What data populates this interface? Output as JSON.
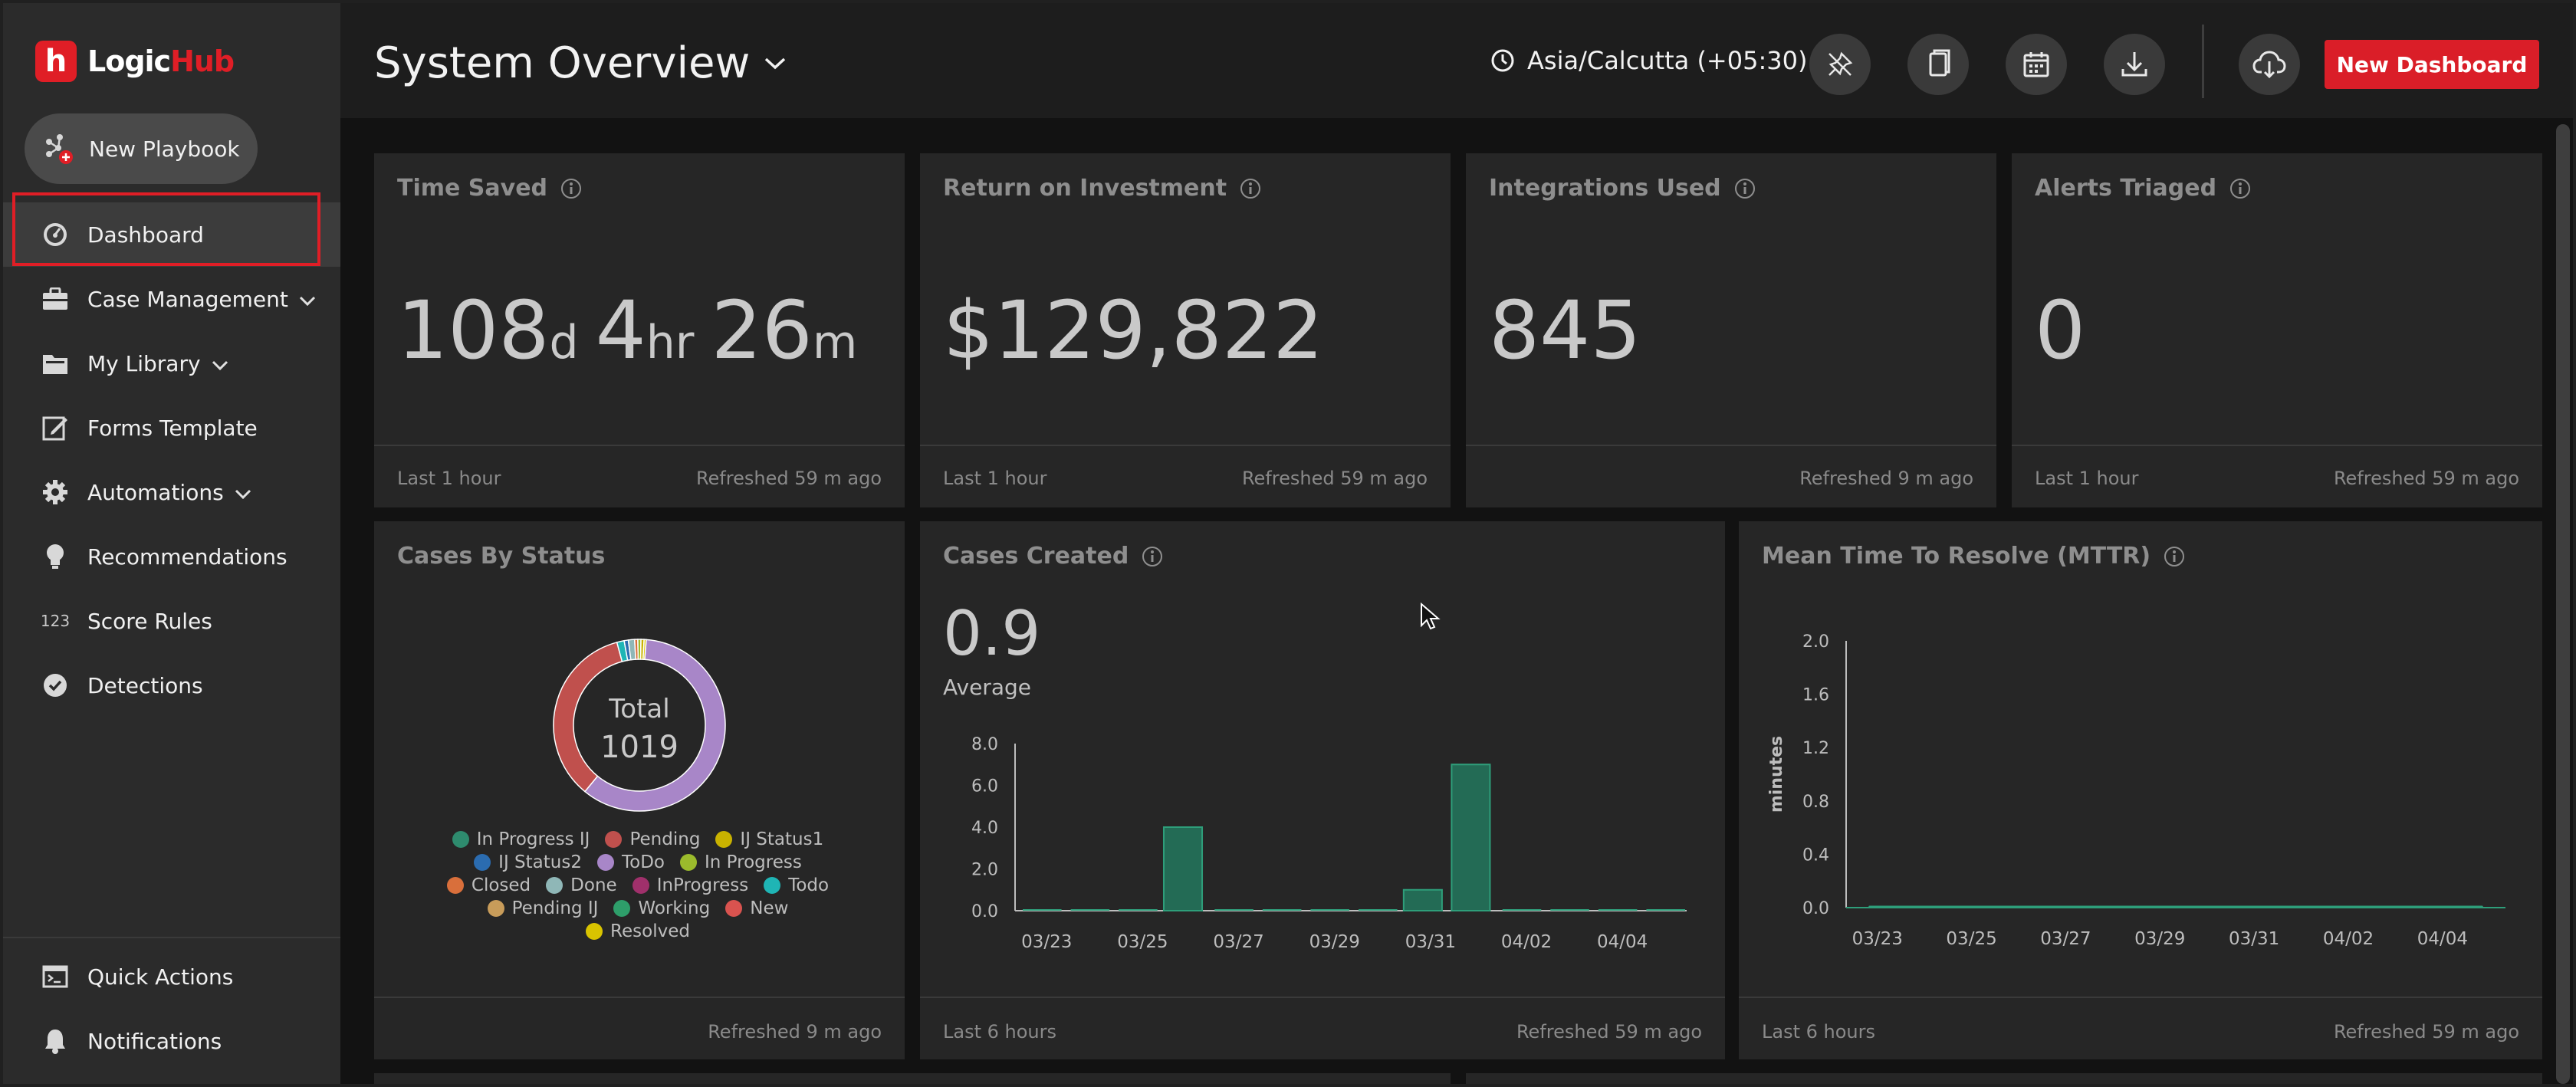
{
  "brand": {
    "logo_letter": "h",
    "name_part1": "Logic",
    "name_part2": "Hub",
    "accent": "#e01e26"
  },
  "sidebar": {
    "new_playbook": "New Playbook",
    "items": [
      {
        "label": "Dashboard",
        "icon": "dashboard-gauge-icon",
        "active": true
      },
      {
        "label": "Case Management",
        "icon": "briefcase-icon",
        "chevron": true
      },
      {
        "label": "My Library",
        "icon": "folder-icon",
        "chevron": true
      },
      {
        "label": "Forms Template",
        "icon": "edit-form-icon"
      },
      {
        "label": "Automations",
        "icon": "gear-icon",
        "chevron": true
      },
      {
        "label": "Recommendations",
        "icon": "lightbulb-icon"
      },
      {
        "label": "Score Rules",
        "icon": "123-icon",
        "icon_text": "123"
      },
      {
        "label": "Detections",
        "icon": "badge-check-icon"
      }
    ],
    "bottom_items": [
      {
        "label": "Quick Actions",
        "icon": "terminal-icon"
      },
      {
        "label": "Notifications",
        "icon": "bell-icon"
      }
    ]
  },
  "header": {
    "title": "System Overview",
    "timezone": "Asia/Calcutta (+05:30)",
    "icon_buttons": [
      "pin-off-icon",
      "copy-icon",
      "calendar-icon",
      "download-icon",
      "cloud-download-icon"
    ],
    "new_dashboard": "New Dashboard"
  },
  "kpis": [
    {
      "title": "Time Saved",
      "parts": [
        {
          "n": "108",
          "u": "d"
        },
        {
          "n": "4",
          "u": "hr"
        },
        {
          "n": "26",
          "u": "m"
        }
      ],
      "left": "Last 1 hour",
      "right": "Refreshed 59 m ago"
    },
    {
      "title": "Return on Investment",
      "value": "$129,822",
      "left": "Last 1 hour",
      "right": "Refreshed 59 m ago"
    },
    {
      "title": "Integrations Used",
      "value": "845",
      "left": "",
      "right": "Refreshed 9 m ago"
    },
    {
      "title": "Alerts Triaged",
      "value": "0",
      "left": "Last 1 hour",
      "right": "Refreshed 59 m ago"
    }
  ],
  "cases_by_status": {
    "title": "Cases By Status",
    "total_label": "Total",
    "total_value": "1019",
    "footer_right": "Refreshed 9 m ago",
    "legend_rows": [
      [
        {
          "label": "In Progress IJ",
          "color": "#2e8b6e"
        },
        {
          "label": "Pending",
          "color": "#c0504d"
        },
        {
          "label": "IJ Status1",
          "color": "#c9b200"
        }
      ],
      [
        {
          "label": "IJ Status2",
          "color": "#2b6cb0"
        },
        {
          "label": "ToDo",
          "color": "#a886c8"
        },
        {
          "label": "In Progress",
          "color": "#9bbb2c"
        }
      ],
      [
        {
          "label": "Closed",
          "color": "#d96f3b"
        },
        {
          "label": "Done",
          "color": "#8fb7b7"
        },
        {
          "label": "InProgress",
          "color": "#a0306b"
        },
        {
          "label": "Todo",
          "color": "#1fb5b5"
        }
      ],
      [
        {
          "label": "Pending IJ",
          "color": "#c89c5a"
        },
        {
          "label": "Working",
          "color": "#2e9e6a"
        },
        {
          "label": "New",
          "color": "#d9534f"
        }
      ],
      [
        {
          "label": "Resolved",
          "color": "#d9c400"
        }
      ]
    ]
  },
  "cases_created": {
    "title": "Cases Created",
    "value": "0.9",
    "sub": "Average",
    "footer_left": "Last 6 hours",
    "footer_right": "Refreshed 59 m ago"
  },
  "mttr": {
    "title": "Mean Time To Resolve (MTTR)",
    "footer_left": "Last 6 hours",
    "footer_right": "Refreshed 59 m ago"
  },
  "chart_data": [
    {
      "type": "pie",
      "title": "Cases By Status",
      "categories": [
        "ToDo",
        "Pending",
        "Todo",
        "IJ Status2",
        "Done",
        "Closed",
        "In Progress",
        "IJ Status1",
        "Resolved"
      ],
      "values": [
        608,
        355,
        14,
        8,
        12,
        6,
        6,
        6,
        4
      ],
      "colors": [
        "#a886c8",
        "#c0504d",
        "#1fb5b5",
        "#2b6cb0",
        "#8fb7b7",
        "#d96f3b",
        "#9bbb2c",
        "#c9b200",
        "#d9c400"
      ]
    },
    {
      "type": "bar",
      "title": "Cases Created",
      "categories": [
        "03/23",
        "03/24",
        "03/25",
        "03/26",
        "03/27",
        "03/28",
        "03/29",
        "03/30",
        "03/31",
        "04/01",
        "04/02",
        "04/03",
        "04/04",
        "04/05"
      ],
      "values": [
        0,
        0,
        0,
        4,
        0,
        0,
        0,
        0,
        1,
        7,
        0,
        0,
        0,
        0
      ],
      "tick_labels": [
        "03/23",
        "03/25",
        "03/27",
        "03/29",
        "03/31",
        "04/02",
        "04/04"
      ],
      "y_ticks": [
        "0.0",
        "2.0",
        "4.0",
        "6.0",
        "8.0"
      ],
      "ylim": [
        0,
        8
      ]
    },
    {
      "type": "line",
      "title": "Mean Time To Resolve (MTTR)",
      "ylabel": "minutes",
      "categories": [
        "03/23",
        "03/24",
        "03/25",
        "03/26",
        "03/27",
        "03/28",
        "03/29",
        "03/30",
        "03/31",
        "04/01",
        "04/02",
        "04/03",
        "04/04",
        "04/05"
      ],
      "values": [
        0,
        0,
        0,
        0,
        0,
        0,
        0,
        0,
        0,
        0,
        0,
        0,
        0,
        0
      ],
      "tick_labels": [
        "03/23",
        "03/25",
        "03/27",
        "03/29",
        "03/31",
        "04/02",
        "04/04"
      ],
      "y_ticks": [
        "0.0",
        "0.4",
        "0.8",
        "1.2",
        "1.6",
        "2.0"
      ],
      "ylim": [
        0,
        2
      ]
    }
  ]
}
